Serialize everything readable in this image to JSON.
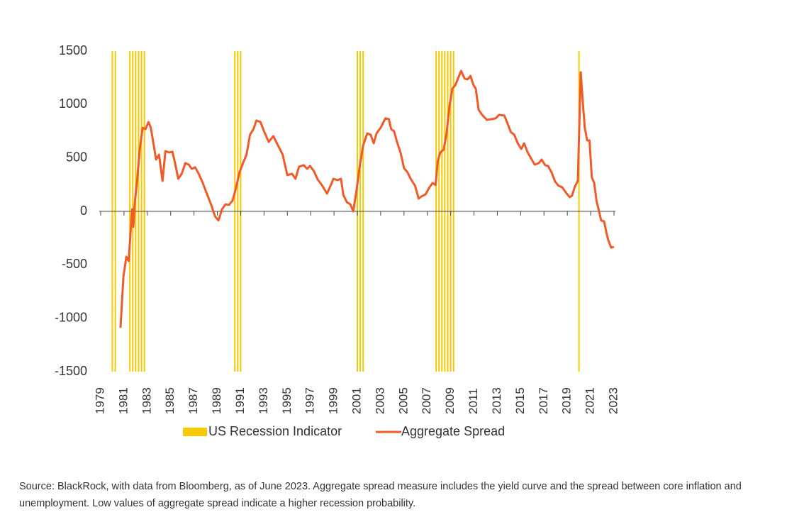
{
  "chart_data": {
    "type": "line",
    "series": [
      {
        "name": "US Recession Indicator",
        "color": "#f5c800",
        "x": [
          1980.0,
          1980.25,
          1981.5,
          1981.75,
          1982.0,
          1982.25,
          1982.5,
          1982.75,
          1990.5,
          1990.75,
          1991.0,
          2001.0,
          2001.25,
          2001.5,
          2007.75,
          2008.0,
          2008.25,
          2008.5,
          2008.75,
          2009.0,
          2009.25,
          2020.0
        ]
      },
      {
        "name": "Aggregate Spread",
        "color": "#f05a28",
        "x": [
          1980.7,
          1980.95,
          1981.2,
          1981.4,
          1981.55,
          1981.7,
          1981.8,
          1981.9,
          1982.15,
          1982.35,
          1982.6,
          1982.85,
          1983.1,
          1983.3,
          1983.5,
          1983.75,
          1984.0,
          1984.3,
          1984.55,
          1984.85,
          1985.15,
          1985.4,
          1985.65,
          1985.95,
          1986.25,
          1986.55,
          1986.8,
          1987.1,
          1987.4,
          1987.75,
          1988.1,
          1988.5,
          1988.8,
          1989.1,
          1989.4,
          1989.7,
          1990.0,
          1990.3,
          1990.6,
          1990.9,
          1991.2,
          1991.5,
          1991.8,
          1992.1,
          1992.35,
          1992.7,
          1993.0,
          1993.4,
          1993.8,
          1994.2,
          1994.6,
          1995.0,
          1995.4,
          1995.7,
          1996.0,
          1996.4,
          1996.7,
          1996.95,
          1997.3,
          1997.6,
          1998.0,
          1998.4,
          1998.7,
          1998.95,
          1999.3,
          1999.6,
          1999.8,
          2000.1,
          2000.4,
          2000.65,
          2000.9,
          2001.2,
          2001.5,
          2001.85,
          2002.15,
          2002.4,
          2002.65,
          2003.0,
          2003.4,
          2003.7,
          2003.9,
          2004.15,
          2004.4,
          2004.7,
          2005.0,
          2005.3,
          2005.6,
          2005.95,
          2006.25,
          2006.5,
          2006.85,
          2007.15,
          2007.45,
          2007.7,
          2007.9,
          2008.1,
          2008.4,
          2008.65,
          2008.9,
          2009.15,
          2009.4,
          2009.65,
          2009.9,
          2010.2,
          2010.45,
          2010.7,
          2010.95,
          2011.15,
          2011.4,
          2011.7,
          2012.1,
          2012.5,
          2012.85,
          2013.15,
          2013.6,
          2013.9,
          2014.15,
          2014.45,
          2014.75,
          2015.05,
          2015.3,
          2015.6,
          2015.95,
          2016.2,
          2016.55,
          2016.8,
          2017.1,
          2017.35,
          2017.65,
          2017.95,
          2018.25,
          2018.55,
          2018.9,
          2019.2,
          2019.4,
          2019.65,
          2019.9,
          2020.15,
          2020.35,
          2020.5,
          2020.7,
          2020.9,
          2021.1,
          2021.3,
          2021.5,
          2021.75,
          2021.9,
          2022.15,
          2022.35,
          2022.5,
          2022.75,
          2023.0
        ],
        "values": [
          -1089,
          -611,
          -425,
          -465,
          -212,
          20,
          -146,
          53,
          319,
          584,
          783,
          770,
          836,
          783,
          650,
          485,
          531,
          285,
          564,
          551,
          558,
          438,
          305,
          352,
          451,
          438,
          398,
          412,
          352,
          266,
          166,
          53,
          -46,
          -86,
          20,
          66,
          60,
          100,
          219,
          365,
          451,
          531,
          717,
          770,
          850,
          836,
          750,
          650,
          704,
          617,
          531,
          339,
          352,
          305,
          418,
          432,
          398,
          425,
          372,
          299,
          239,
          166,
          239,
          305,
          292,
          305,
          153,
          86,
          66,
          0,
          173,
          418,
          617,
          730,
          717,
          637,
          730,
          783,
          870,
          863,
          770,
          750,
          650,
          551,
          405,
          365,
          299,
          239,
          120,
          140,
          159,
          219,
          266,
          246,
          471,
          551,
          578,
          730,
          983,
          1149,
          1182,
          1248,
          1315,
          1242,
          1235,
          1268,
          1182,
          1149,
          950,
          903,
          856,
          863,
          870,
          903,
          896,
          816,
          743,
          717,
          637,
          584,
          637,
          551,
          485,
          438,
          451,
          485,
          432,
          425,
          365,
          279,
          239,
          226,
          173,
          133,
          146,
          233,
          286,
          1302,
          983,
          783,
          664,
          664,
          319,
          266,
          100,
          -13,
          -86,
          -93,
          -199,
          -266,
          -339,
          -332
        ]
      }
    ],
    "xlim": [
      1979,
      2023
    ],
    "xticks": [
      1979,
      1981,
      1983,
      1985,
      1987,
      1989,
      1991,
      1993,
      1995,
      1997,
      1999,
      2001,
      2003,
      2005,
      2007,
      2009,
      2011,
      2013,
      2015,
      2017,
      2019,
      2021,
      2023
    ],
    "ylim": [
      -1500,
      1500
    ],
    "yticks": [
      -1500,
      -1000,
      -500,
      0,
      500,
      1000,
      1500
    ]
  },
  "source": "Source: BlackRock, with data from Bloomberg, as of June 2023. Aggregate spread measure includes the yield curve and the spread between core inflation and unemployment. Low values of aggregate spread indicate a higher recession probability."
}
